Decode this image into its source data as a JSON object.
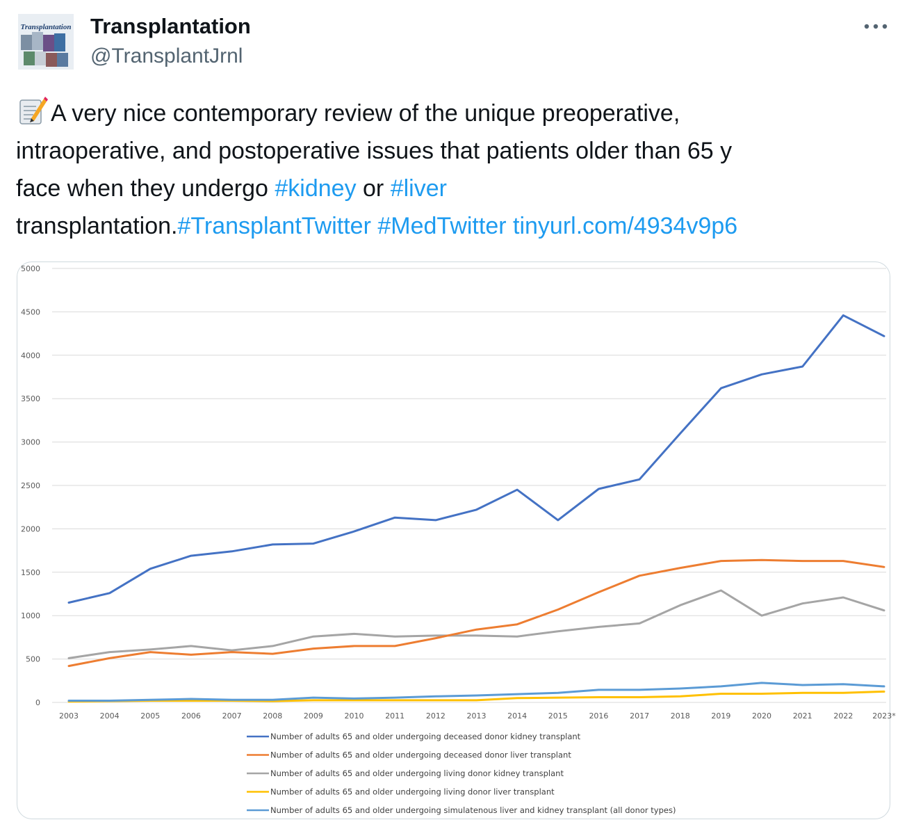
{
  "author": {
    "name": "Transplantation",
    "handle": "@TransplantJrnl",
    "avatar_label": "Transplantation"
  },
  "tweet": {
    "emoji": "memo-icon",
    "line1": "A very nice contemporary review of the unique preoperative,",
    "line2": "intraoperative, and postoperative issues that patients older than 65 y",
    "line3_prefix": "face when they undergo ",
    "hashtag_kidney": "#kidney",
    "line3_mid": " or ",
    "hashtag_liver": "#liver",
    "line4_prefix": "transplantation.",
    "hashtag_transplant_twitter": "#TransplantTwitter",
    "hashtag_medtwitter": "#MedTwitter",
    "link": "tinyurl.com/4934v9p6"
  },
  "colors": {
    "link": "#1d9bf0",
    "text": "#0f1419",
    "secondary": "#536471"
  },
  "chart_data": {
    "type": "line",
    "title": "",
    "xlabel": "",
    "ylabel": "",
    "ylim": [
      0,
      5000
    ],
    "yticks": [
      "0",
      "500",
      "1000",
      "1500",
      "2000",
      "2500",
      "3000",
      "3500",
      "4000",
      "4500",
      "5000"
    ],
    "grid": true,
    "legend_placement": "bottom",
    "x": [
      "2003",
      "2004",
      "2005",
      "2006",
      "2007",
      "2008",
      "2009",
      "2010",
      "2011",
      "2012",
      "2013",
      "2014",
      "2015",
      "2016",
      "2017",
      "2018",
      "2019",
      "2020",
      "2021",
      "2022",
      "2023*"
    ],
    "series": [
      {
        "name": "Number of adults 65 and older undergoing deceased donor kidney transplant",
        "color": "#4472c4",
        "values": [
          1150,
          1260,
          1540,
          1690,
          1740,
          1820,
          1830,
          1970,
          2130,
          2100,
          2220,
          2450,
          2100,
          2460,
          2570,
          3100,
          3620,
          3780,
          3870,
          4460,
          4220
        ]
      },
      {
        "name": "Number of adults 65 and older undergoing deceased donor liver transplant",
        "color": "#ed7d31",
        "values": [
          420,
          510,
          580,
          550,
          580,
          560,
          620,
          650,
          650,
          740,
          840,
          900,
          1070,
          1270,
          1460,
          1550,
          1630,
          1640,
          1630,
          1630,
          1560
        ]
      },
      {
        "name": "Number of adults 65 and older undergoing living donor kidney transplant",
        "color": "#a5a5a5",
        "values": [
          510,
          580,
          610,
          650,
          600,
          650,
          760,
          790,
          760,
          770,
          770,
          760,
          820,
          870,
          910,
          1120,
          1290,
          1000,
          1140,
          1210,
          1060
        ]
      },
      {
        "name": "Number of adults 65 and older undergoing living donor liver transplant",
        "color": "#ffc000",
        "values": [
          10,
          15,
          20,
          20,
          20,
          15,
          25,
          25,
          25,
          25,
          25,
          50,
          55,
          60,
          60,
          70,
          100,
          100,
          110,
          110,
          125
        ]
      },
      {
        "name": "Number of adults 65 and older undergoing simulatenous liver and kidney transplant (all donor types)",
        "color": "#5b9bd5",
        "values": [
          20,
          20,
          30,
          40,
          30,
          30,
          55,
          45,
          55,
          70,
          80,
          95,
          110,
          145,
          145,
          160,
          185,
          225,
          200,
          210,
          185
        ]
      }
    ]
  }
}
